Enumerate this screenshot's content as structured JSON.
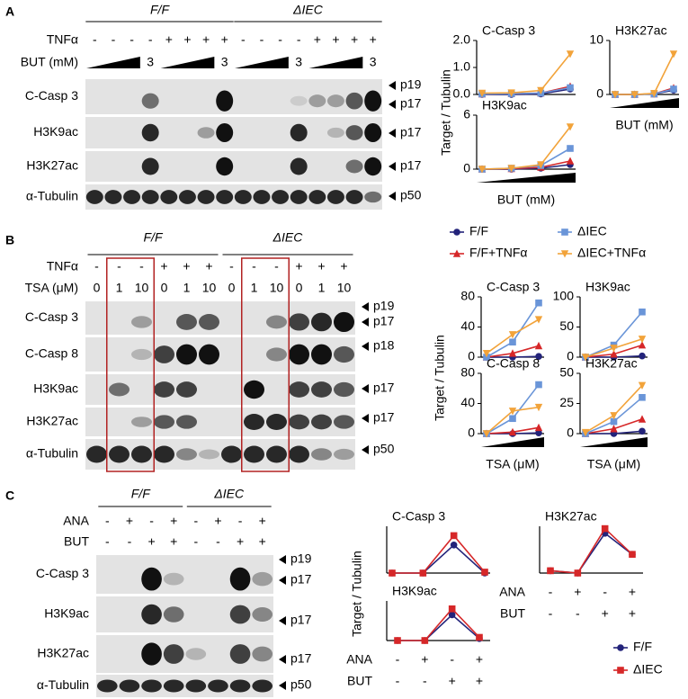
{
  "panels": [
    {
      "label": "A",
      "groups": [
        "F/F",
        "ΔIEC"
      ],
      "y_label": "Target / Tubulin",
      "rows": [
        {
          "label": "TNFα",
          "lanes": [
            "-",
            "-",
            "-",
            "-",
            "+",
            "+",
            "+",
            "+",
            "-",
            "-",
            "-",
            "-",
            "+",
            "+",
            "+",
            "+"
          ]
        },
        {
          "label": "BUT (mM)",
          "ramp": true,
          "lanes": [
            null,
            null,
            null,
            "3",
            null,
            null,
            null,
            "3",
            null,
            null,
            null,
            "3",
            null,
            null,
            null,
            "3"
          ]
        }
      ],
      "blots": [
        {
          "label": "C-Casp 3",
          "markers": [
            "p19",
            "p17"
          ]
        },
        {
          "label": "H3K9ac",
          "markers": [
            "p17"
          ]
        },
        {
          "label": "H3K27ac",
          "markers": [
            "p17"
          ]
        },
        {
          "label": "α-Tubulin",
          "markers": [
            "p50"
          ]
        }
      ]
    },
    {
      "label": "B",
      "groups": [
        "F/F",
        "ΔIEC"
      ],
      "y_label": "Target / Tubulin",
      "rows": [
        {
          "label": "TNFα",
          "lanes": [
            "-",
            "-",
            "-",
            "+",
            "+",
            "+",
            "-",
            "-",
            "-",
            "+",
            "+",
            "+"
          ]
        },
        {
          "label": "TSA (μM)",
          "lanes": [
            "0",
            "1",
            "10",
            "0",
            "1",
            "10",
            "0",
            "1",
            "10",
            "0",
            "1",
            "10"
          ]
        }
      ],
      "blots": [
        {
          "label": "C-Casp 3",
          "markers": [
            "p19",
            "p17"
          ]
        },
        {
          "label": "C-Casp 8",
          "markers": [
            "p18"
          ]
        },
        {
          "label": "H3K9ac",
          "markers": [
            "p17"
          ]
        },
        {
          "label": "H3K27ac",
          "markers": [
            "p17"
          ]
        },
        {
          "label": "α-Tubulin",
          "markers": [
            "p50"
          ]
        }
      ]
    },
    {
      "label": "C",
      "groups": [
        "F/F",
        "ΔIEC"
      ],
      "y_label": "Target / Tubulin",
      "rows": [
        {
          "label": "ANA",
          "lanes": [
            "-",
            "+",
            "-",
            "+",
            "-",
            "+",
            "-",
            "+"
          ]
        },
        {
          "label": "BUT",
          "lanes": [
            "-",
            "-",
            "+",
            "+",
            "-",
            "-",
            "+",
            "+"
          ]
        }
      ],
      "blots": [
        {
          "label": "C-Casp 3",
          "markers": [
            "p19",
            "p17"
          ]
        },
        {
          "label": "H3K9ac",
          "markers": [
            "p17"
          ]
        },
        {
          "label": "H3K27ac",
          "markers": [
            "p17"
          ]
        },
        {
          "label": "α-Tubulin",
          "markers": [
            "p50"
          ]
        }
      ]
    }
  ],
  "chart_data": [
    {
      "type": "line",
      "title": "C-Casp 3",
      "categories": [
        null,
        null,
        null,
        null
      ],
      "ylim": [
        0,
        2
      ],
      "yticks": [
        {
          "value": 0,
          "label": "0.0"
        },
        {
          "value": 1,
          "label": "1.0"
        },
        {
          "value": 2,
          "label": "2.0"
        }
      ],
      "series": [
        {
          "name": "F/F",
          "color": "#23237a",
          "marker": "circle",
          "values": [
            0,
            0,
            0.02,
            0.2
          ]
        },
        {
          "name": "F/F+TNFα",
          "color": "#d62728",
          "marker": "triangle",
          "values": [
            0.02,
            0.03,
            0.05,
            0.3
          ]
        },
        {
          "name": "ΔIEC",
          "color": "#6a95d8",
          "marker": "square",
          "values": [
            0.02,
            0.03,
            0.05,
            0.25
          ]
        },
        {
          "name": "ΔIEC+TNFα",
          "color": "#f2a33a",
          "marker": "triangle-down",
          "values": [
            0.05,
            0.06,
            0.15,
            1.5
          ]
        }
      ]
    },
    {
      "type": "line",
      "title": "H3K27ac",
      "xlabel": "BUT (mM)",
      "categories": [
        null,
        null,
        null,
        null
      ],
      "ylim": [
        0,
        10
      ],
      "yticks": [
        0,
        10
      ],
      "series": [
        {
          "name": "F/F",
          "color": "#23237a",
          "marker": "circle",
          "values": [
            0,
            0,
            0.1,
            0.8
          ]
        },
        {
          "name": "F/F+TNFα",
          "color": "#d62728",
          "marker": "triangle",
          "values": [
            0,
            0,
            0.1,
            1.2
          ]
        },
        {
          "name": "ΔIEC",
          "color": "#6a95d8",
          "marker": "square",
          "values": [
            0,
            0,
            0.1,
            1
          ]
        },
        {
          "name": "ΔIEC+TNFα",
          "color": "#f2a33a",
          "marker": "triangle-down",
          "values": [
            0,
            0,
            0.2,
            7.5
          ]
        }
      ]
    },
    {
      "type": "line",
      "title": "H3K9ac",
      "xlabel": "BUT (mM)",
      "categories": [
        null,
        null,
        null,
        null
      ],
      "ylim": [
        0,
        6
      ],
      "yticks": [
        0,
        6
      ],
      "series": [
        {
          "name": "F/F",
          "color": "#23237a",
          "marker": "circle",
          "values": [
            0,
            0,
            0.1,
            0.5
          ]
        },
        {
          "name": "F/F+TNFα",
          "color": "#d62728",
          "marker": "triangle",
          "values": [
            0,
            0.05,
            0.2,
            0.9
          ]
        },
        {
          "name": "ΔIEC",
          "color": "#6a95d8",
          "marker": "square",
          "values": [
            0,
            0.1,
            0.4,
            2.3
          ]
        },
        {
          "name": "ΔIEC+TNFα",
          "color": "#f2a33a",
          "marker": "triangle-down",
          "values": [
            0,
            0.1,
            0.5,
            4.7
          ]
        }
      ]
    },
    {
      "type": "line",
      "title": "C-Casp 3",
      "legend": true,
      "categories": [
        null,
        null,
        null
      ],
      "ylim": [
        0,
        80
      ],
      "yticks": [
        0,
        40,
        80
      ],
      "series": [
        {
          "name": "F/F",
          "color": "#23237a",
          "marker": "circle",
          "values": [
            0,
            0,
            1
          ]
        },
        {
          "name": "F/F+TNFα",
          "color": "#d62728",
          "marker": "triangle",
          "values": [
            0,
            5,
            15
          ]
        },
        {
          "name": "ΔIEC",
          "color": "#6a95d8",
          "marker": "square",
          "values": [
            0,
            20,
            72
          ]
        },
        {
          "name": "ΔIEC+TNFα",
          "color": "#f2a33a",
          "marker": "triangle-down",
          "values": [
            5,
            30,
            50
          ]
        }
      ]
    },
    {
      "type": "line",
      "title": "H3K9ac",
      "categories": [
        null,
        null,
        null
      ],
      "ylim": [
        0,
        100
      ],
      "yticks": [
        0,
        50,
        100
      ],
      "series": [
        {
          "name": "F/F",
          "color": "#23237a",
          "marker": "circle",
          "values": [
            0,
            0,
            2
          ]
        },
        {
          "name": "F/F+TNFα",
          "color": "#d62728",
          "marker": "triangle",
          "values": [
            0,
            5,
            20
          ]
        },
        {
          "name": "ΔIEC",
          "color": "#6a95d8",
          "marker": "square",
          "values": [
            0,
            20,
            75
          ]
        },
        {
          "name": "ΔIEC+TNFα",
          "color": "#f2a33a",
          "marker": "triangle-down",
          "values": [
            0,
            15,
            30
          ]
        }
      ]
    },
    {
      "type": "line",
      "title": "C-Casp 8",
      "xlabel": "TSA (μM)",
      "categories": [
        null,
        null,
        null
      ],
      "ylim": [
        0,
        80
      ],
      "yticks": [
        0,
        40,
        80
      ],
      "series": [
        {
          "name": "F/F",
          "color": "#23237a",
          "marker": "circle",
          "values": [
            0,
            0,
            1
          ]
        },
        {
          "name": "F/F+TNFα",
          "color": "#d62728",
          "marker": "triangle",
          "values": [
            0,
            2,
            8
          ]
        },
        {
          "name": "ΔIEC",
          "color": "#6a95d8",
          "marker": "square",
          "values": [
            0,
            20,
            65
          ]
        },
        {
          "name": "ΔIEC+TNFα",
          "color": "#f2a33a",
          "marker": "triangle-down",
          "values": [
            0,
            30,
            35
          ]
        }
      ]
    },
    {
      "type": "line",
      "title": "H3K27ac",
      "xlabel": "TSA (μM)",
      "categories": [
        null,
        null,
        null
      ],
      "ylim": [
        0,
        50
      ],
      "yticks": [
        0,
        25,
        50
      ],
      "series": [
        {
          "name": "F/F",
          "color": "#23237a",
          "marker": "circle",
          "values": [
            0,
            0,
            2
          ]
        },
        {
          "name": "F/F+TNFα",
          "color": "#d62728",
          "marker": "triangle",
          "values": [
            0,
            4,
            12
          ]
        },
        {
          "name": "ΔIEC",
          "color": "#6a95d8",
          "marker": "square",
          "values": [
            0,
            10,
            30
          ]
        },
        {
          "name": "ΔIEC+TNFα",
          "color": "#f2a33a",
          "marker": "triangle-down",
          "values": [
            1,
            15,
            40
          ]
        }
      ]
    },
    {
      "type": "line",
      "title": "C-Casp 3",
      "legend": true,
      "categories": [
        null,
        null,
        null,
        null
      ],
      "ylim": [
        0,
        1
      ],
      "series": [
        {
          "name": "F/F",
          "color": "#23237a",
          "marker": "circle",
          "values": [
            0,
            0,
            0.6,
            0
          ]
        },
        {
          "name": "ΔIEC",
          "color": "#d62728",
          "marker": "square",
          "values": [
            0,
            0,
            0.8,
            0.02
          ]
        }
      ]
    },
    {
      "type": "line",
      "title": "H3K27ac",
      "categories": [
        null,
        null,
        null,
        null
      ],
      "ylim": [
        0,
        1
      ],
      "x_rows": [
        {
          "label": "ANA",
          "values": [
            "-",
            "+",
            "-",
            "+"
          ]
        },
        {
          "label": "BUT",
          "values": [
            "-",
            "-",
            "+",
            "+"
          ]
        }
      ],
      "series": [
        {
          "name": "F/F",
          "color": "#23237a",
          "marker": "circle",
          "values": [
            0.05,
            0,
            0.85,
            0.4
          ]
        },
        {
          "name": "ΔIEC",
          "color": "#d62728",
          "marker": "square",
          "values": [
            0.05,
            0,
            0.95,
            0.4
          ]
        }
      ]
    },
    {
      "type": "line",
      "title": "H3K9ac",
      "categories": [
        null,
        null,
        null,
        null
      ],
      "ylim": [
        0,
        1
      ],
      "x_rows": [
        {
          "label": "ANA",
          "values": [
            "-",
            "+",
            "-",
            "+"
          ]
        },
        {
          "label": "BUT",
          "values": [
            "-",
            "-",
            "+",
            "+"
          ]
        }
      ],
      "series": [
        {
          "name": "F/F",
          "color": "#23237a",
          "marker": "circle",
          "values": [
            0,
            0,
            0.65,
            0.05
          ]
        },
        {
          "name": "ΔIEC",
          "color": "#d62728",
          "marker": "square",
          "values": [
            0,
            0,
            0.8,
            0.08
          ]
        }
      ]
    }
  ]
}
